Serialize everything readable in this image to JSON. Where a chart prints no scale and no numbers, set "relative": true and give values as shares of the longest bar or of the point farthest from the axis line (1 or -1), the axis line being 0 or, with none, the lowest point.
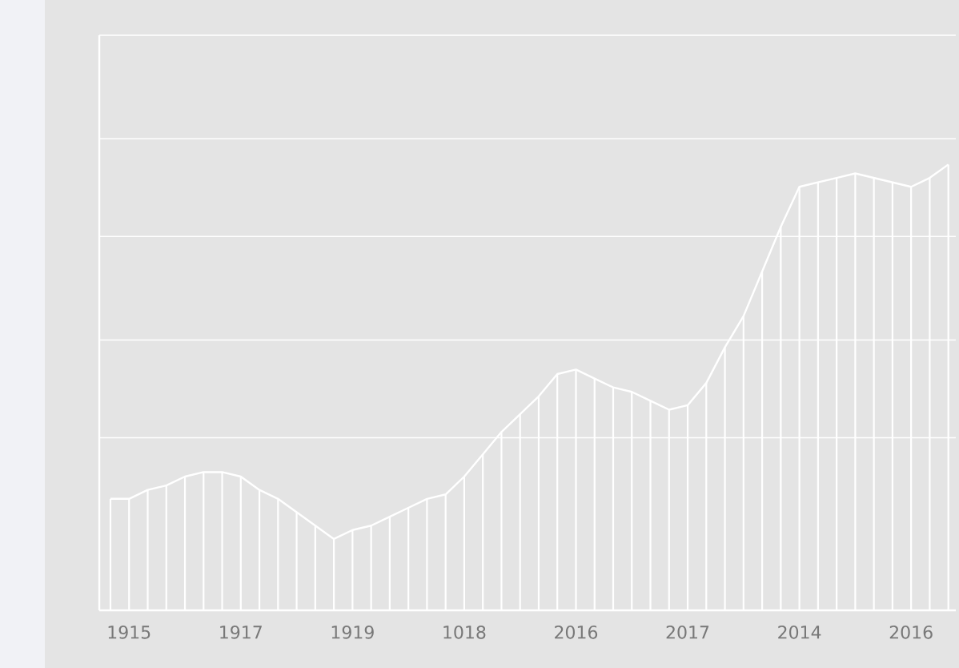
{
  "chart_data": {
    "type": "bar",
    "relative": true,
    "grid": "y",
    "categories": [
      null,
      "1915",
      null,
      null,
      null,
      null,
      null,
      "1917",
      null,
      null,
      null,
      null,
      null,
      "1919",
      null,
      null,
      null,
      null,
      null,
      "1018",
      null,
      null,
      null,
      null,
      null,
      "2016",
      null,
      null,
      null,
      null,
      null,
      "2017",
      null,
      null,
      null,
      null,
      null,
      "2014",
      null,
      null,
      null,
      null,
      null,
      "2016",
      null,
      null
    ],
    "series": [
      {
        "color": "#ffffff",
        "values": [
          0.25,
          0.25,
          0.27,
          0.28,
          0.3,
          0.31,
          0.31,
          0.3,
          0.27,
          0.25,
          0.22,
          0.19,
          0.16,
          0.18,
          0.19,
          0.21,
          0.23,
          0.25,
          0.26,
          0.3,
          0.35,
          0.4,
          0.44,
          0.48,
          0.53,
          0.54,
          0.52,
          0.5,
          0.49,
          0.47,
          0.45,
          0.46,
          0.51,
          0.59,
          0.66,
          0.76,
          0.86,
          0.95,
          0.96,
          0.97,
          0.98,
          0.97,
          0.96,
          0.95,
          0.97,
          1.0
        ]
      },
      {
        "type": "line",
        "color": "#ffffff",
        "values": [
          0.25,
          0.25,
          0.27,
          0.28,
          0.3,
          0.31,
          0.31,
          0.3,
          0.27,
          0.25,
          0.22,
          0.19,
          0.16,
          0.18,
          0.19,
          0.21,
          0.23,
          0.25,
          0.26,
          0.3,
          0.35,
          0.4,
          0.44,
          0.48,
          0.53,
          0.54,
          0.52,
          0.5,
          0.49,
          0.47,
          0.45,
          0.46,
          0.51,
          0.59,
          0.66,
          0.76,
          0.86,
          0.95,
          0.96,
          0.97,
          0.98,
          0.97,
          0.96,
          0.95,
          0.97,
          1.0
        ]
      }
    ]
  }
}
